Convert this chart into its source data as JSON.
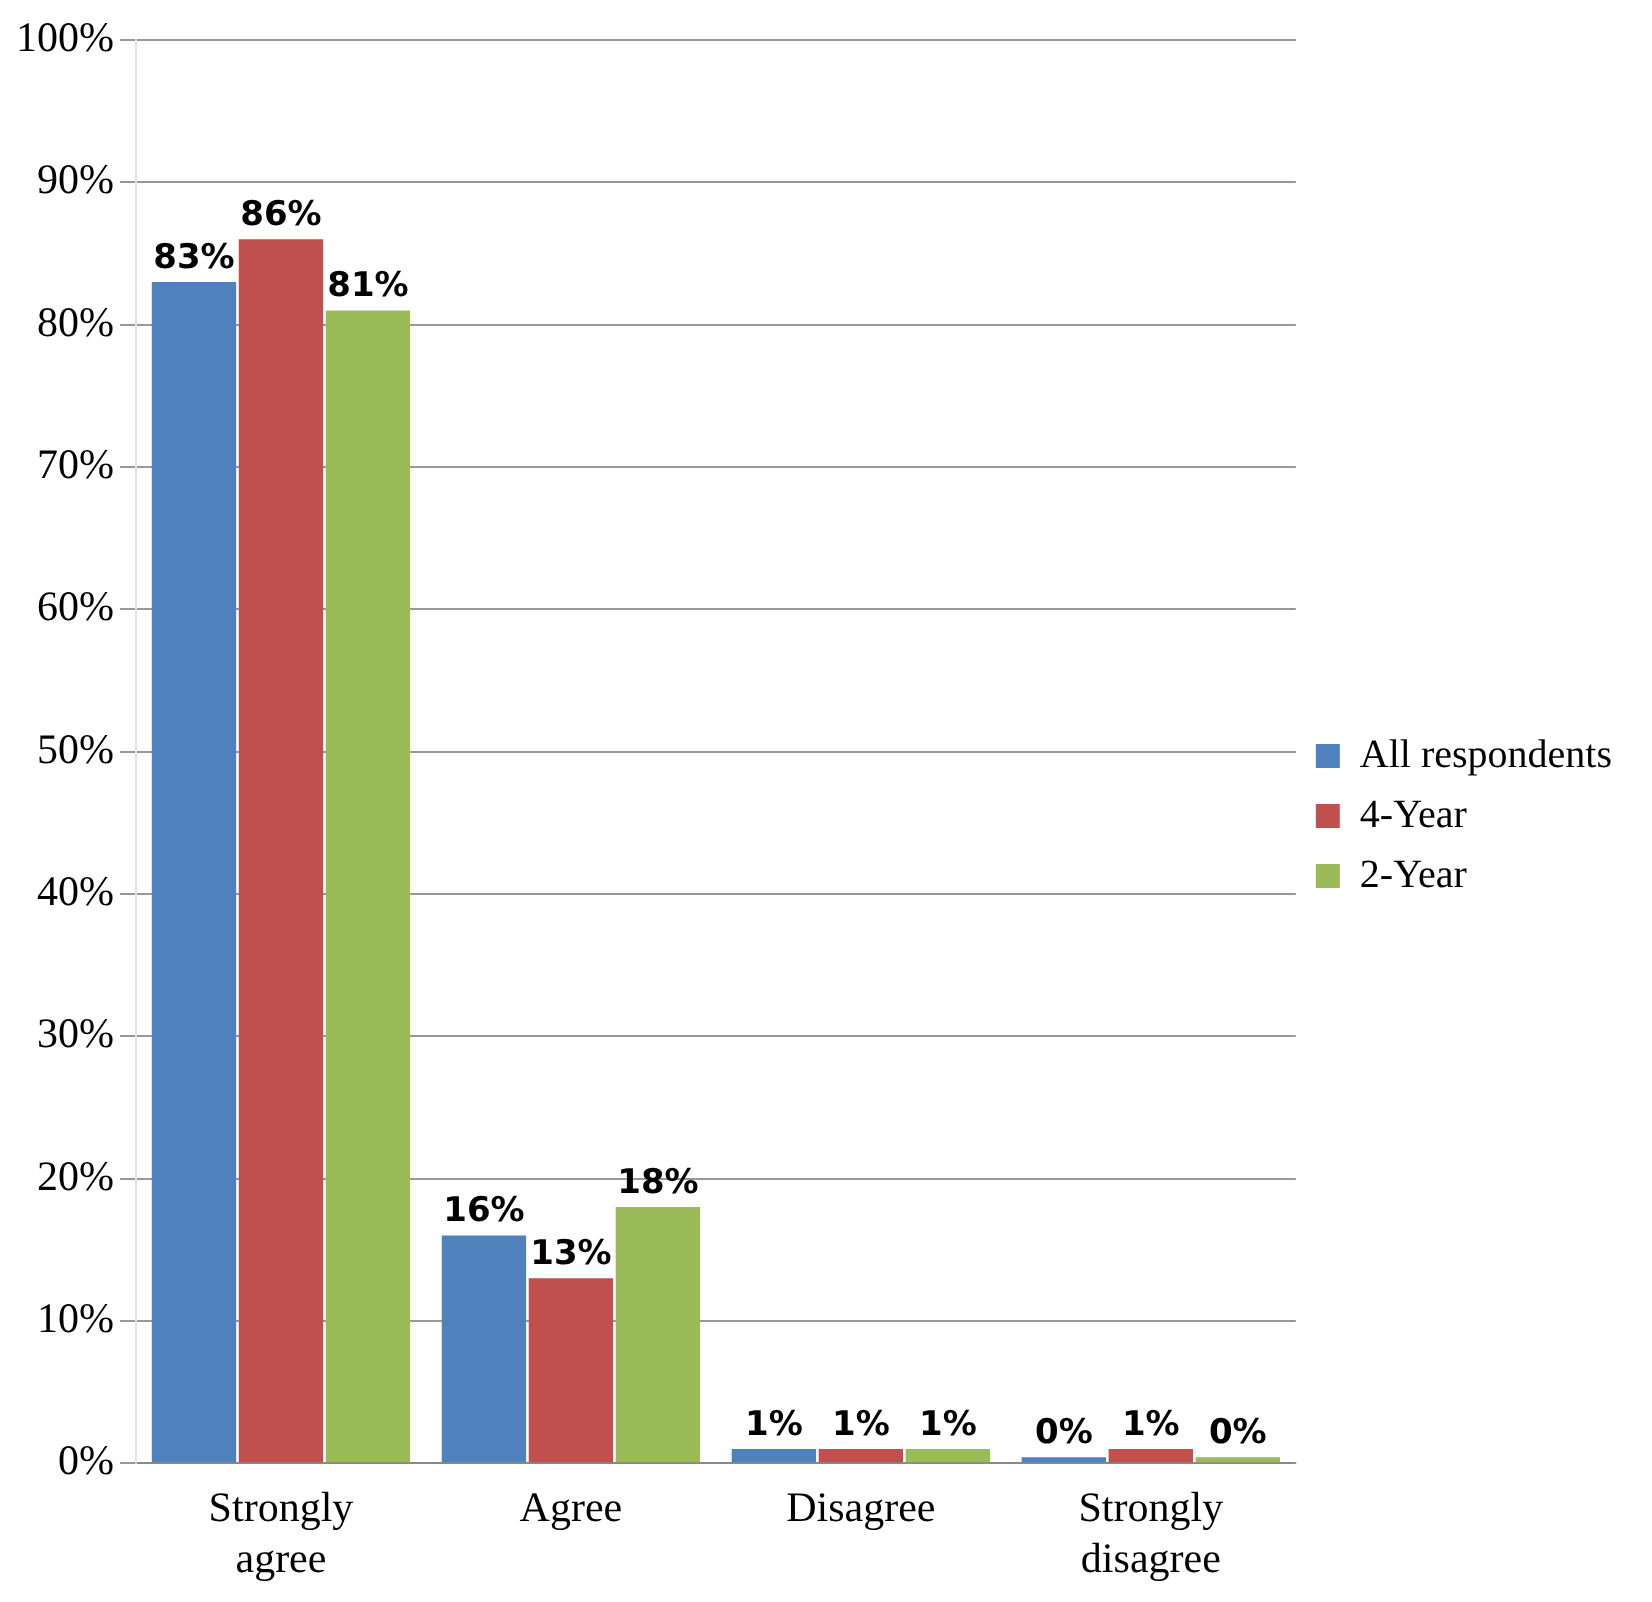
{
  "chart_data": {
    "type": "bar",
    "categories": [
      "Strongly agree",
      "Agree",
      "Disagree",
      "Strongly disagree"
    ],
    "series": [
      {
        "name": "All respondents",
        "color": "#4f81bd",
        "values": [
          83,
          16,
          1,
          0
        ],
        "value_labels": [
          "83%",
          "16%",
          "1%",
          "0%"
        ]
      },
      {
        "name": "4-Year",
        "color": "#c0504d",
        "values": [
          86,
          13,
          1,
          1
        ],
        "value_labels": [
          "86%",
          "13%",
          "1%",
          "1%"
        ]
      },
      {
        "name": "2-Year",
        "color": "#9bbb59",
        "values": [
          81,
          18,
          1,
          0
        ],
        "value_labels": [
          "81%",
          "18%",
          "1%",
          "0%"
        ]
      }
    ],
    "ylim": [
      0,
      100
    ],
    "yticks": [
      {
        "value": 0,
        "label": "0%"
      },
      {
        "value": 10,
        "label": "10%"
      },
      {
        "value": 20,
        "label": "20%"
      },
      {
        "value": 30,
        "label": "30%"
      },
      {
        "value": 40,
        "label": "40%"
      },
      {
        "value": 50,
        "label": "50%"
      },
      {
        "value": 60,
        "label": "60%"
      },
      {
        "value": 70,
        "label": "70%"
      },
      {
        "value": 80,
        "label": "80%"
      },
      {
        "value": 90,
        "label": "90%"
      },
      {
        "value": 100,
        "label": "100%"
      }
    ],
    "grid": "y",
    "legend": "right"
  }
}
